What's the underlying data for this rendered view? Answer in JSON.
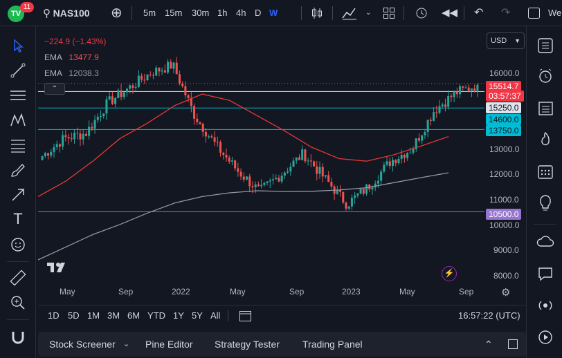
{
  "header": {
    "logo_text": "TV",
    "notification_count": "11",
    "symbol": "NAS100",
    "timeframes": [
      "5m",
      "15m",
      "30m",
      "1h",
      "4h",
      "D",
      "W"
    ],
    "active_timeframe": "W",
    "cut_text": "We"
  },
  "legend": {
    "change": "−224.9 (−1.43%)",
    "ema1_label": "EMA",
    "ema1_value": "13477.9",
    "ema2_label": "EMA",
    "ema2_value": "12038.3"
  },
  "currency": "USD",
  "price_axis": [
    "16000.0",
    "13000.0",
    "12000.0",
    "11000.0",
    "10000.0",
    "9000.0",
    "8000.0"
  ],
  "price_tags": {
    "last_price": "15514.7",
    "countdown": "03:57:37",
    "level1": "15250.0",
    "level2": "14600.0",
    "level3": "13750.0",
    "level4": "10500.0"
  },
  "time_axis": [
    "May",
    "Sep",
    "2022",
    "May",
    "Sep",
    "2023",
    "May",
    "Sep"
  ],
  "bottom_bar": {
    "ranges": [
      "1D",
      "5D",
      "1M",
      "3M",
      "6M",
      "YTD",
      "1Y",
      "5Y",
      "All"
    ],
    "clock": "16:57:22 (UTC)"
  },
  "panels": [
    "Stock Screener",
    "Pine Editor",
    "Strategy Tester",
    "Trading Panel"
  ],
  "colors": {
    "up": "#26a69a",
    "down": "#ef5350",
    "ema_fast": "#e53935",
    "ema_slow": "#9598a1",
    "level": "#00bcd4",
    "level_low": "#9575cd",
    "accent": "#2962ff"
  },
  "chart_data": {
    "type": "candlestick",
    "xlabel": "",
    "ylabel": "",
    "ylim": [
      7800,
      17400
    ],
    "x_ticks": [
      "May",
      "Sep",
      "2022",
      "May",
      "Sep",
      "2023",
      "May",
      "Sep"
    ],
    "horizontal_levels": [
      15250,
      14600,
      13750,
      10500
    ],
    "series": [
      {
        "name": "EMA",
        "values": [
          11100,
          11700,
          12500,
          13400,
          14000,
          14700,
          15150,
          14900,
          14300,
          13700,
          13050,
          12600,
          12500,
          12750,
          13100,
          13470
        ]
      },
      {
        "name": "EMA",
        "values": [
          8600,
          9100,
          9600,
          10000,
          10450,
          10850,
          11100,
          11250,
          11330,
          11300,
          11310,
          11360,
          11450,
          11650,
          11850,
          12040
        ]
      }
    ],
    "close_approx": [
      12700,
      13400,
      13600,
      14800,
      15400,
      16000,
      16300,
      14300,
      13100,
      12100,
      11300,
      12000,
      12800,
      11800,
      10800,
      11500,
      12500,
      13000,
      14500,
      15200,
      15515
    ]
  }
}
